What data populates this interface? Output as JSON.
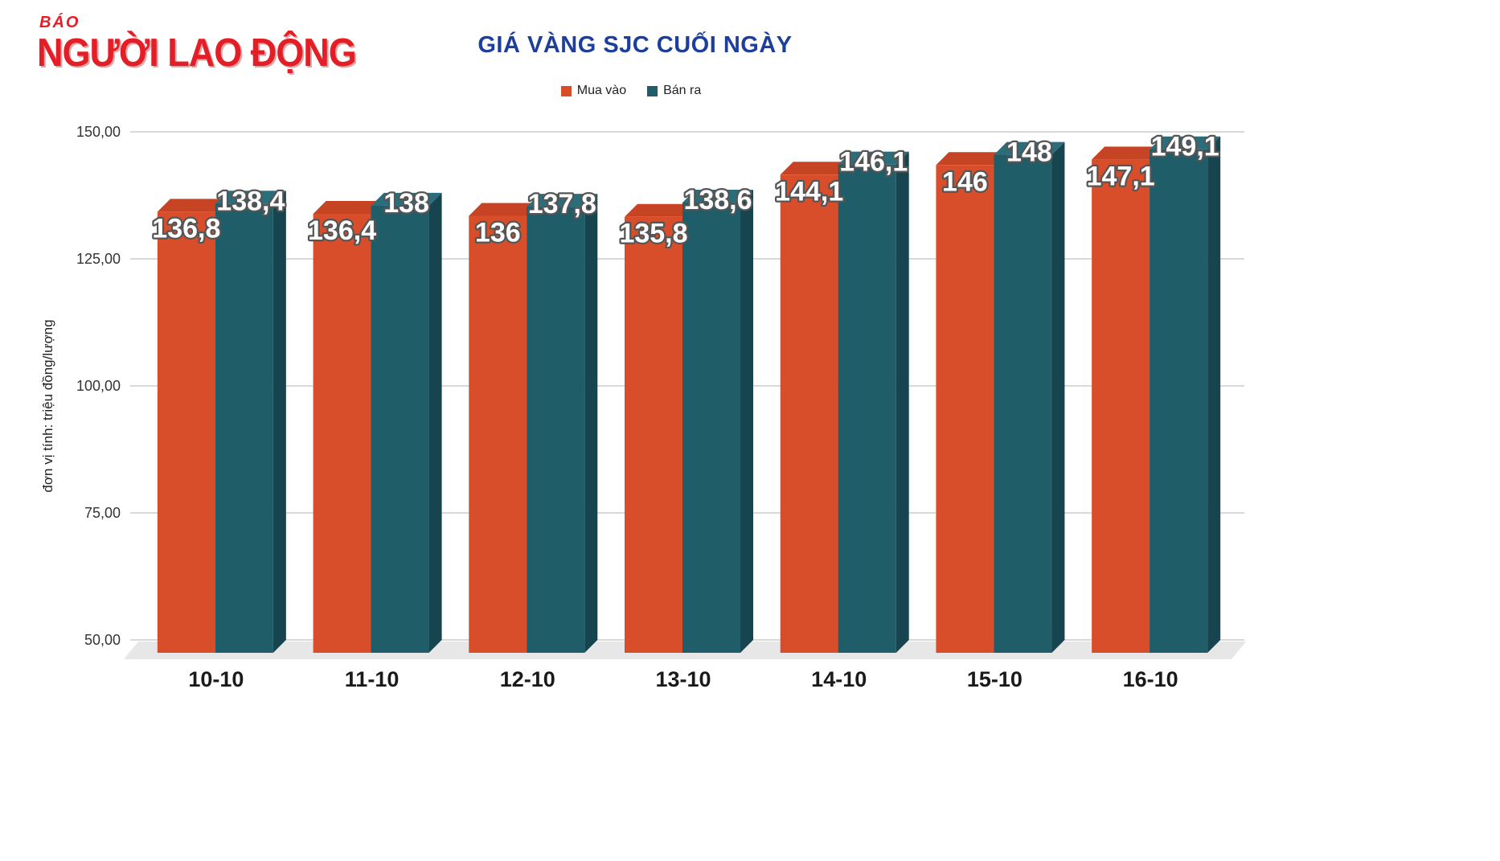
{
  "logo": {
    "top": "BÁO",
    "main": "NGƯỜI LAO ĐỘNG"
  },
  "header": {
    "title": "GIÁ VÀNG SJC CUỐI NGÀY"
  },
  "chart_data": {
    "type": "bar",
    "title": "GIÁ VÀNG SJC CUỐI NGÀY",
    "xlabel": "",
    "ylabel": "đơn vị tính: triệu đồng/lượng",
    "ylim": [
      50,
      150
    ],
    "yticks": [
      {
        "value": 150,
        "label": "150,00"
      },
      {
        "value": 125,
        "label": "125,00"
      },
      {
        "value": 100,
        "label": "100,00"
      },
      {
        "value": 75,
        "label": "75,00"
      },
      {
        "value": 50,
        "label": "50,00"
      }
    ],
    "grid": true,
    "legend_position": "top",
    "effect_3d": true,
    "categories": [
      "10-10",
      "11-10",
      "12-10",
      "13-10",
      "14-10",
      "15-10",
      "16-10"
    ],
    "series": [
      {
        "name": "Mua vào",
        "color": "#d94e2a",
        "color_top": "#c64423",
        "color_side": "#a93a1d",
        "values": [
          136.8,
          136.4,
          136,
          135.8,
          144.1,
          146,
          147.1
        ],
        "labels": [
          "136,8",
          "136,4",
          "136",
          "135,8",
          "144,1",
          "146",
          "147,1"
        ]
      },
      {
        "name": "Bán ra",
        "color": "#1f5d69",
        "color_top": "#2a6e7c",
        "color_side": "#16454f",
        "values": [
          138.4,
          138,
          137.8,
          138.6,
          146.1,
          148,
          149.1
        ],
        "labels": [
          "138,4",
          "138",
          "137,8",
          "138,6",
          "146,1",
          "148",
          "149,1"
        ]
      }
    ]
  }
}
